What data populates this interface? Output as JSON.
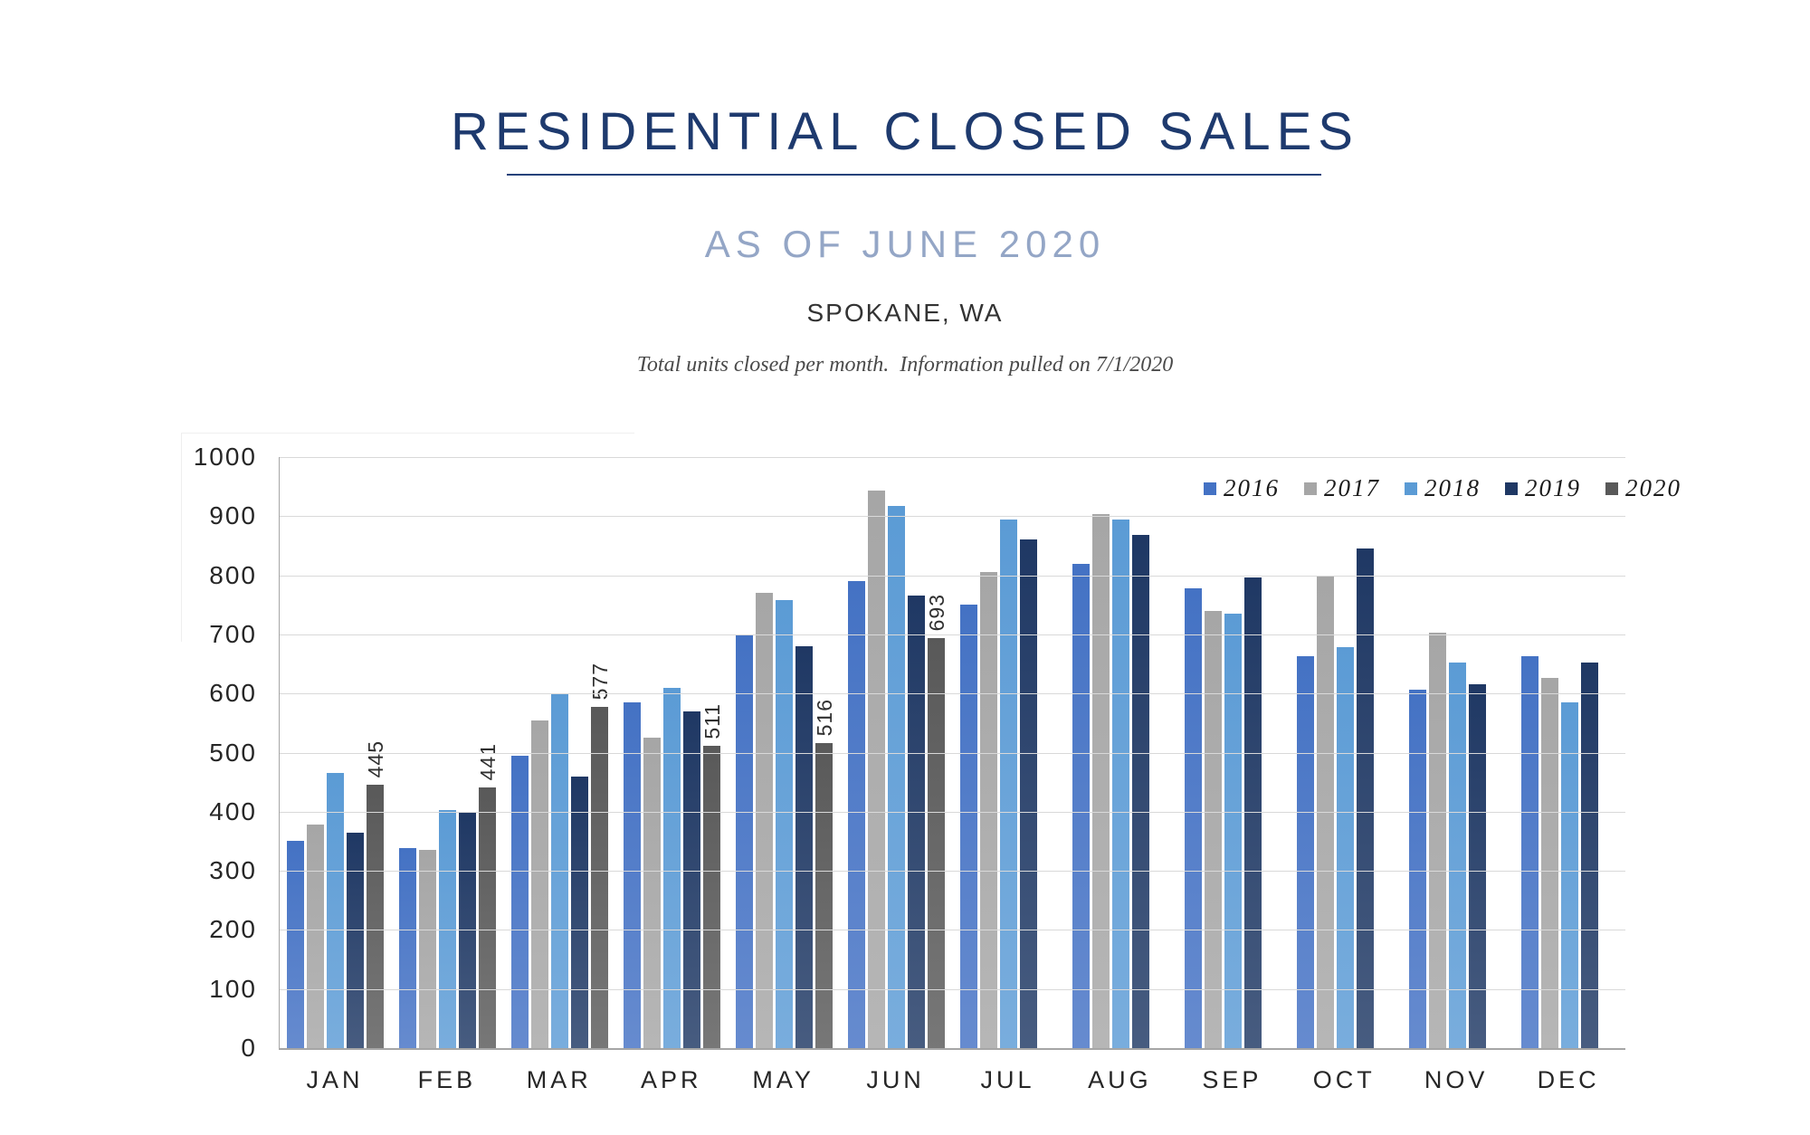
{
  "header": {
    "title": "RESIDENTIAL CLOSED SALES",
    "subtitle": "AS OF JUNE 2020",
    "location": "SPOKANE, WA",
    "note": "Total units closed per month.  Information pulled on 7/1/2020"
  },
  "colors": {
    "title": "#1E3A6E",
    "title_rule": "#24427A",
    "subtitle": "#94A6C6",
    "gridline": "#D9D9D9",
    "axis_line": "#A6A6A6",
    "tick_text": "#262626",
    "data_label_text": "#303030"
  },
  "chart_data": {
    "type": "bar",
    "title": "Residential closed sales per month, Spokane WA",
    "xlabel": "",
    "ylabel": "",
    "ylim": [
      0,
      1000
    ],
    "yticks": [
      0,
      100,
      200,
      300,
      400,
      500,
      600,
      700,
      800,
      900,
      1000
    ],
    "grid": true,
    "legend_position": "top-right",
    "categories": [
      "JAN",
      "FEB",
      "MAR",
      "APR",
      "MAY",
      "JUN",
      "JUL",
      "AUG",
      "SEP",
      "OCT",
      "NOV",
      "DEC"
    ],
    "series": [
      {
        "name": "2016",
        "color": "#4472C4",
        "labeled": false,
        "values": [
          350,
          339,
          495,
          585,
          700,
          790,
          750,
          820,
          778,
          663,
          607,
          663
        ]
      },
      {
        "name": "2017",
        "color": "#A6A6A6",
        "labeled": false,
        "values": [
          378,
          336,
          555,
          525,
          770,
          943,
          805,
          903,
          740,
          800,
          703,
          627
        ]
      },
      {
        "name": "2018",
        "color": "#5B9BD5",
        "labeled": false,
        "values": [
          465,
          403,
          600,
          610,
          758,
          918,
          895,
          895,
          735,
          678,
          653,
          585
        ]
      },
      {
        "name": "2019",
        "color": "#1F3864",
        "labeled": false,
        "values": [
          365,
          400,
          460,
          570,
          680,
          765,
          860,
          868,
          797,
          845,
          615,
          653
        ]
      },
      {
        "name": "2020",
        "color": "#595959",
        "labeled": true,
        "values": [
          445,
          441,
          577,
          511,
          516,
          693,
          null,
          null,
          null,
          null,
          null,
          null
        ]
      }
    ]
  }
}
